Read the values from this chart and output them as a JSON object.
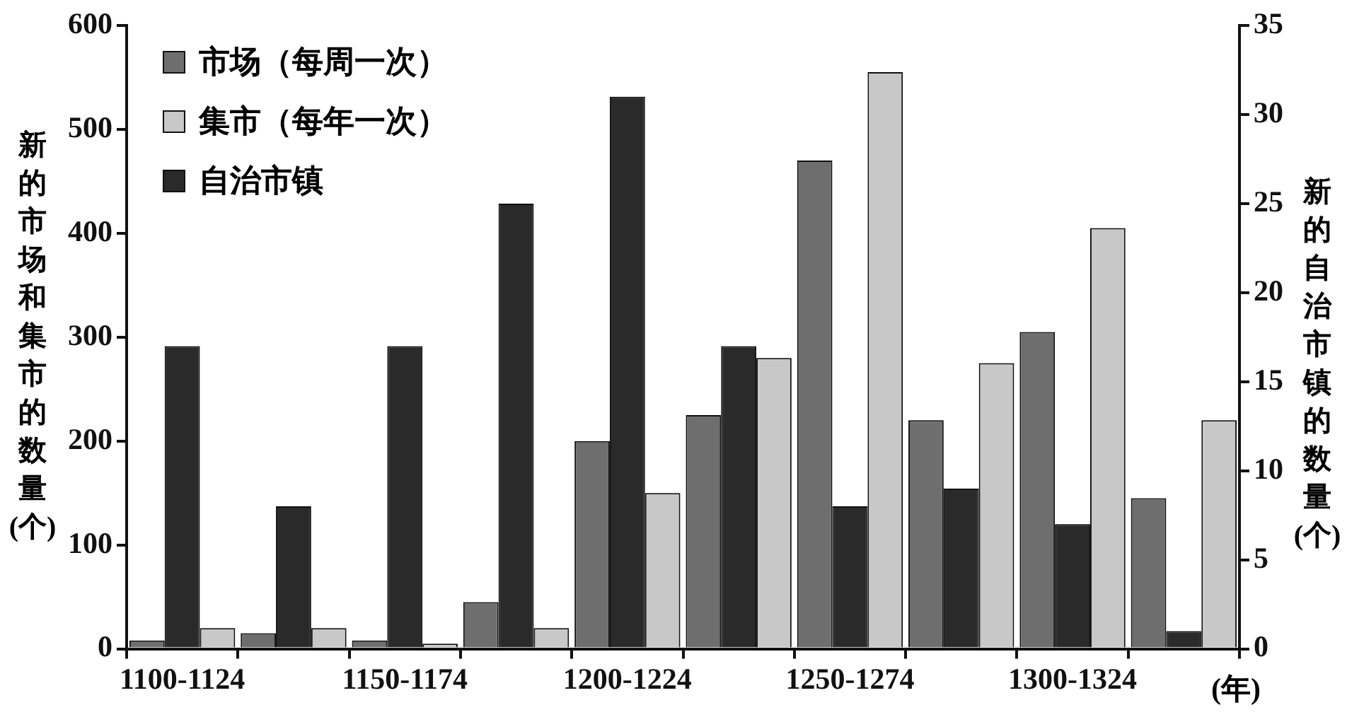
{
  "chart_data": {
    "type": "bar",
    "xlabel": "(年)",
    "ylabel": "新的市场和集市的数量(个)",
    "y2label": "新的自治市镇的数量(个)",
    "categories": [
      "1100-1124",
      null,
      "1150-1174",
      null,
      "1200-1224",
      null,
      "1250-1274",
      null,
      "1300-1324",
      null
    ],
    "series": [
      {
        "name": "市场（每周一次）",
        "color": "#6e6e6e",
        "values": [
          8,
          15,
          8,
          45,
          200,
          225,
          470,
          220,
          305,
          145
        ]
      },
      {
        "name": "集市（每年一次）",
        "color": "#c8c8c8",
        "values": [
          20,
          20,
          5,
          20,
          150,
          280,
          555,
          275,
          405,
          220
        ]
      },
      {
        "name": "自治市镇",
        "color": "#2a2a2a",
        "axis": "y2",
        "values": [
          17,
          8,
          17,
          25,
          31,
          17,
          8,
          9,
          7,
          1
        ]
      }
    ],
    "ylim": [
      0,
      600
    ],
    "yticks": [
      0,
      100,
      200,
      300,
      400,
      500,
      600
    ],
    "y2lim": [
      0,
      35
    ],
    "y2ticks": [
      0,
      5,
      10,
      15,
      20,
      25,
      30,
      35
    ],
    "grid": false,
    "legend": "top left"
  }
}
